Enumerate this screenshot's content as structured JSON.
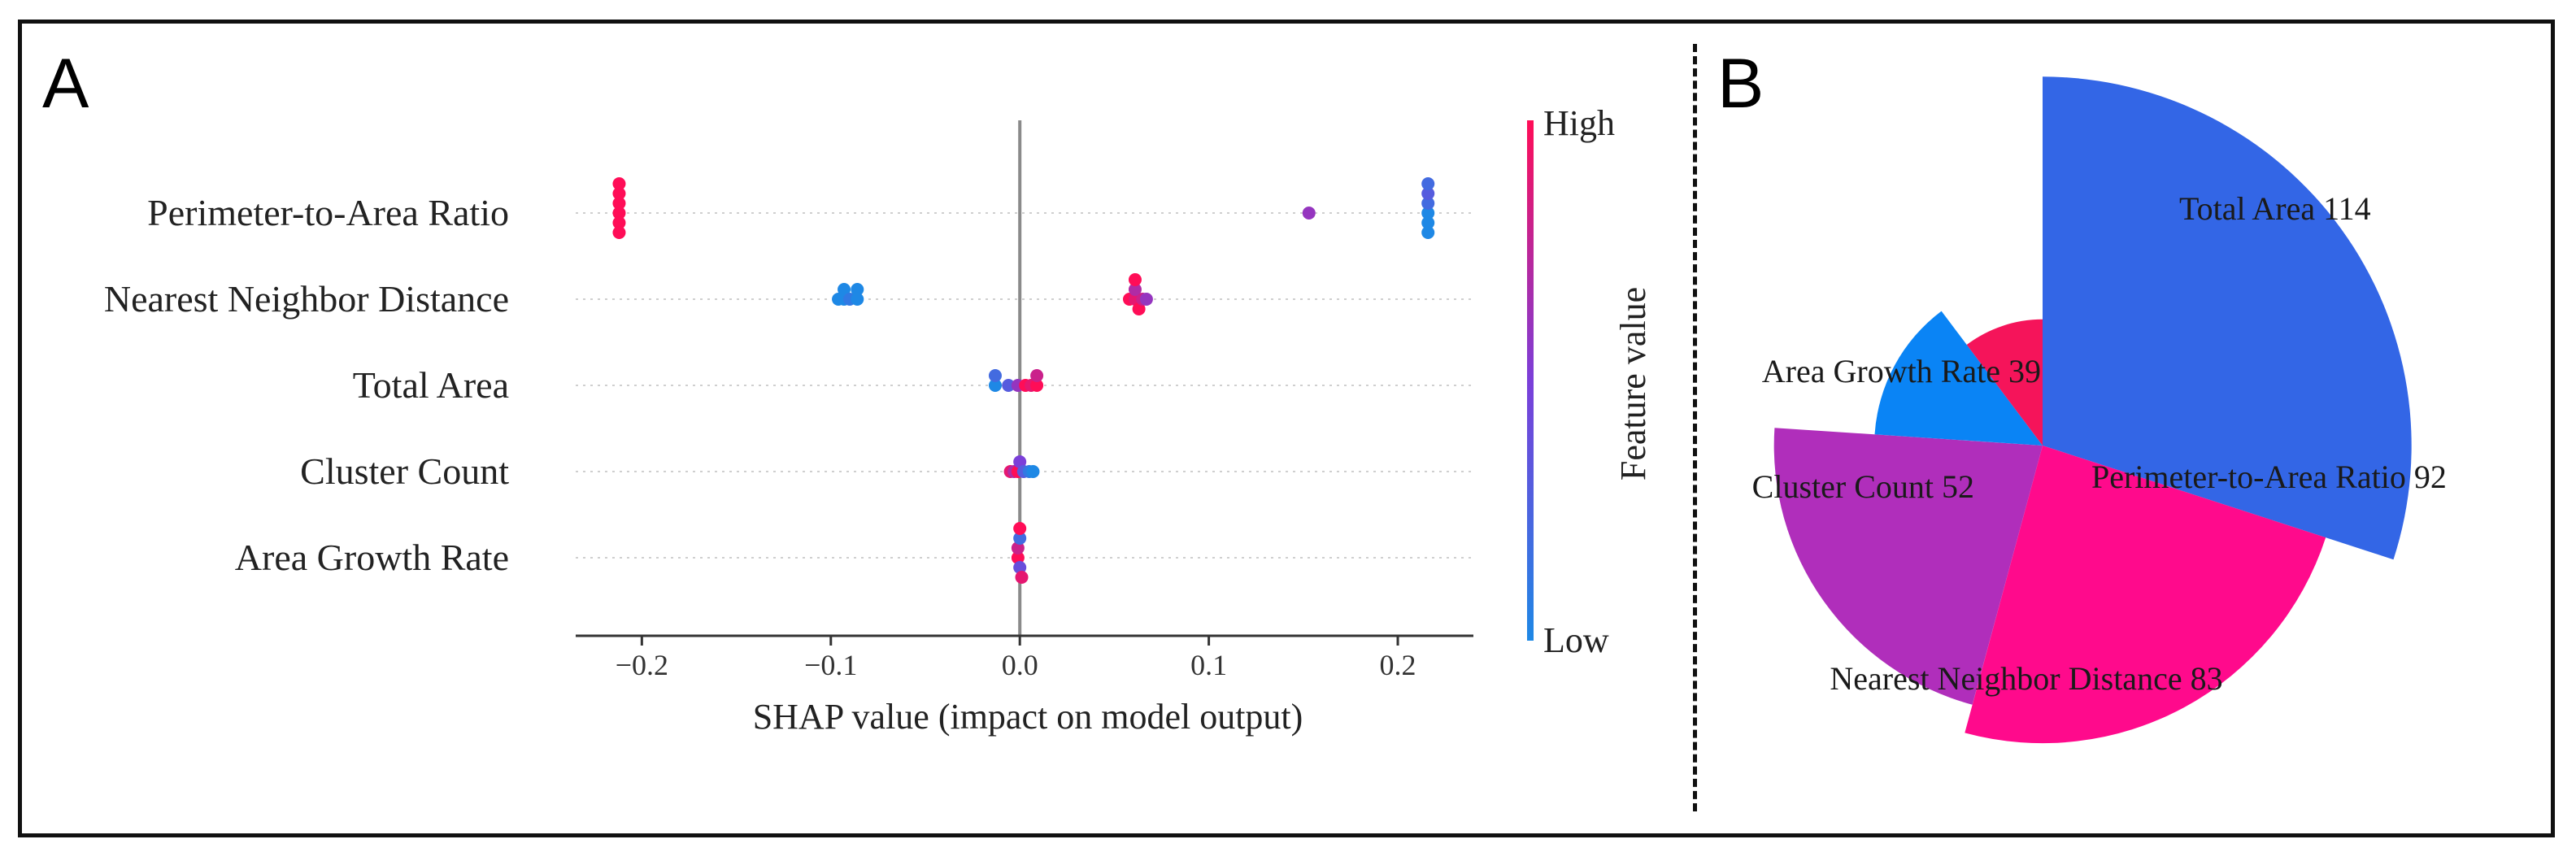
{
  "panels": {
    "a_label": "A",
    "b_label": "B"
  },
  "chart_data": [
    {
      "type": "scatter",
      "subtype": "shap-beeswarm",
      "xlabel": "SHAP value (impact on model output)",
      "xlim": [
        -0.235,
        0.24
      ],
      "xticks": [
        -0.2,
        -0.1,
        0.0,
        0.1,
        0.2
      ],
      "xtick_labels": [
        "−0.2",
        "−0.1",
        "0.0",
        "0.1",
        "0.2"
      ],
      "zero_line": 0.0,
      "grid": "dotted row guides",
      "colorbar": {
        "label": "Feature value",
        "high_label": "High",
        "low_label": "Low",
        "high_color": "#ff0d57",
        "mid_color": "#7b3fd9",
        "low_color": "#1e88e5"
      },
      "features": [
        {
          "name": "Perimeter-to-Area Ratio",
          "points": [
            {
              "x": -0.212,
              "v": 1.0
            },
            {
              "x": -0.212,
              "v": 1.0
            },
            {
              "x": -0.212,
              "v": 1.0
            },
            {
              "x": -0.212,
              "v": 1.0
            },
            {
              "x": -0.212,
              "v": 1.0
            },
            {
              "x": -0.212,
              "v": 1.0
            },
            {
              "x": 0.153,
              "v": 0.6
            },
            {
              "x": 0.216,
              "v": 0.0
            },
            {
              "x": 0.216,
              "v": 0.2
            },
            {
              "x": 0.216,
              "v": 0.0
            },
            {
              "x": 0.216,
              "v": 0.3
            },
            {
              "x": 0.216,
              "v": 0.0
            },
            {
              "x": 0.216,
              "v": 0.2
            }
          ]
        },
        {
          "name": "Nearest Neighbor Distance",
          "points": [
            {
              "x": -0.096,
              "v": 0.0
            },
            {
              "x": -0.093,
              "v": 0.0
            },
            {
              "x": -0.093,
              "v": 0.0
            },
            {
              "x": -0.09,
              "v": 0.1
            },
            {
              "x": -0.086,
              "v": 0.0
            },
            {
              "x": -0.086,
              "v": 0.0
            },
            {
              "x": 0.058,
              "v": 1.0
            },
            {
              "x": 0.061,
              "v": 0.9
            },
            {
              "x": 0.061,
              "v": 0.7
            },
            {
              "x": 0.063,
              "v": 1.0
            },
            {
              "x": 0.065,
              "v": 0.8
            },
            {
              "x": 0.067,
              "v": 0.6
            },
            {
              "x": 0.061,
              "v": 1.0
            }
          ]
        },
        {
          "name": "Total Area",
          "points": [
            {
              "x": -0.013,
              "v": 0.0
            },
            {
              "x": -0.013,
              "v": 0.2
            },
            {
              "x": -0.006,
              "v": 0.3
            },
            {
              "x": -0.001,
              "v": 0.6
            },
            {
              "x": 0.003,
              "v": 1.0
            },
            {
              "x": 0.006,
              "v": 0.9
            },
            {
              "x": 0.009,
              "v": 1.0
            },
            {
              "x": 0.009,
              "v": 0.8
            }
          ]
        },
        {
          "name": "Cluster Count",
          "points": [
            {
              "x": -0.005,
              "v": 0.9
            },
            {
              "x": -0.003,
              "v": 0.7
            },
            {
              "x": -0.001,
              "v": 1.0
            },
            {
              "x": 0.0,
              "v": 0.5
            },
            {
              "x": 0.002,
              "v": 0.3
            },
            {
              "x": 0.005,
              "v": 0.1
            },
            {
              "x": 0.007,
              "v": 0.0
            }
          ]
        },
        {
          "name": "Area Growth Rate",
          "points": [
            {
              "x": -0.001,
              "v": 1.0
            },
            {
              "x": -0.001,
              "v": 0.8
            },
            {
              "x": 0.0,
              "v": 0.4
            },
            {
              "x": 0.0,
              "v": 0.2
            },
            {
              "x": 0.001,
              "v": 0.9
            },
            {
              "x": 0.0,
              "v": 1.0
            }
          ]
        }
      ]
    },
    {
      "type": "pie",
      "subtype": "nightingale-rose",
      "slices": [
        {
          "label": "Total Area",
          "value": 114,
          "color": "#3366e6"
        },
        {
          "label": "Perimeter-to-Area Ratio",
          "value": 92,
          "color": "#ff0a8c"
        },
        {
          "label": "Nearest Neighbor Distance",
          "value": 83,
          "color": "#b02ebb"
        },
        {
          "label": "Cluster Count",
          "value": 52,
          "color": "#0a84f5"
        },
        {
          "label": "Area Growth Rate",
          "value": 39,
          "color": "#f5145a"
        }
      ]
    }
  ]
}
